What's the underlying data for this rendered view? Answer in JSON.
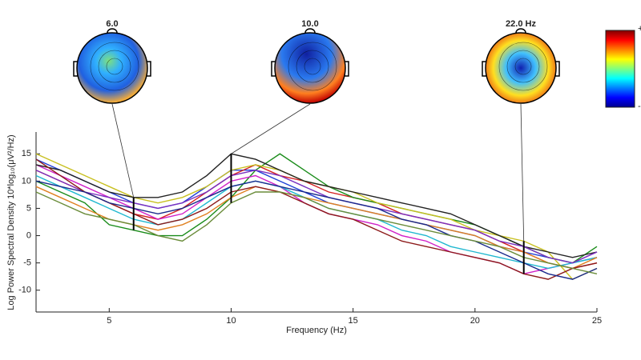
{
  "chart_data": {
    "type": "line",
    "xlabel": "Frequency (Hz)",
    "ylabel": "Log Power Spectral Density 10*log₁₀(μV²/Hz)",
    "x": [
      2,
      3,
      4,
      5,
      6,
      7,
      8,
      9,
      10,
      11,
      12,
      13,
      14,
      15,
      16,
      17,
      18,
      19,
      20,
      21,
      22,
      23,
      24,
      25
    ],
    "xlim": [
      2,
      25
    ],
    "xticks": [
      5,
      10,
      15,
      20,
      25
    ],
    "ylim": [
      -14,
      19
    ],
    "yticks": [
      -10,
      -5,
      0,
      5,
      10,
      15
    ],
    "markers": [
      {
        "freq": 6,
        "label": "6.0"
      },
      {
        "freq": 10,
        "label": "10.0"
      },
      {
        "freq": 22,
        "label": "22.0 Hz"
      }
    ],
    "colorbar": {
      "top": "+",
      "bottom": "-"
    },
    "series": [
      {
        "color": "#1f3fd6",
        "values": [
          14,
          12,
          10,
          8,
          6,
          5,
          6,
          9,
          12,
          12,
          10,
          8,
          6,
          5,
          4,
          3,
          2,
          1,
          0,
          -2,
          -3,
          -4,
          -5,
          -4
        ]
      },
      {
        "color": "#d42020",
        "values": [
          12,
          10,
          8,
          6,
          4,
          3,
          5,
          8,
          11,
          13,
          11,
          10,
          8,
          7,
          6,
          4,
          3,
          2,
          1,
          -1,
          -3,
          -5,
          -6,
          -5
        ]
      },
      {
        "color": "#1a8c1a",
        "values": [
          10,
          8,
          6,
          2,
          1,
          0,
          0,
          3,
          7,
          12,
          15,
          12,
          9,
          7,
          6,
          5,
          4,
          3,
          2,
          0,
          -2,
          -4,
          -5,
          -2
        ]
      },
      {
        "color": "#d020c8",
        "values": [
          13,
          11,
          9,
          7,
          5,
          3,
          4,
          7,
          10,
          11,
          9,
          6,
          4,
          3,
          2,
          0,
          -1,
          -3,
          -4,
          -5,
          -7,
          -6,
          -5,
          -3
        ]
      },
      {
        "color": "#c8c020",
        "values": [
          15,
          13,
          11,
          9,
          7,
          6,
          7,
          9,
          12,
          13,
          12,
          10,
          9,
          8,
          6,
          5,
          4,
          3,
          1,
          0,
          -1,
          -3,
          -8,
          -6
        ]
      },
      {
        "color": "#20b8d0",
        "values": [
          11,
          9,
          7,
          5,
          3,
          2,
          3,
          6,
          9,
          10,
          9,
          7,
          5,
          4,
          3,
          1,
          0,
          -2,
          -3,
          -4,
          -5,
          -6,
          -5,
          -4
        ]
      },
      {
        "color": "#222222",
        "values": [
          13,
          12,
          10,
          8,
          7,
          7,
          8,
          11,
          15,
          14,
          12,
          10,
          9,
          8,
          7,
          6,
          5,
          4,
          2,
          0,
          -2,
          -3,
          -4,
          -3
        ]
      },
      {
        "color": "#e08020",
        "values": [
          9,
          7,
          5,
          3,
          2,
          1,
          2,
          4,
          7,
          9,
          8,
          7,
          6,
          5,
          4,
          3,
          2,
          1,
          0,
          -2,
          -3,
          -5,
          -6,
          -4
        ]
      },
      {
        "color": "#7a30c0",
        "values": [
          12,
          10,
          8,
          7,
          6,
          5,
          6,
          8,
          11,
          12,
          11,
          9,
          7,
          6,
          5,
          4,
          3,
          2,
          1,
          -1,
          -2,
          -4,
          -5,
          -3
        ]
      },
      {
        "color": "#8c1a1a",
        "values": [
          14,
          11,
          8,
          6,
          4,
          2,
          3,
          5,
          8,
          9,
          8,
          6,
          4,
          3,
          1,
          -1,
          -2,
          -3,
          -4,
          -5,
          -7,
          -8,
          -6,
          -5
        ]
      },
      {
        "color": "#1a2a8c",
        "values": [
          10,
          9,
          8,
          6,
          5,
          4,
          5,
          7,
          9,
          10,
          9,
          8,
          7,
          6,
          5,
          3,
          2,
          0,
          -1,
          -3,
          -5,
          -7,
          -8,
          -6
        ]
      },
      {
        "color": "#6a8c3a",
        "values": [
          8,
          6,
          4,
          3,
          2,
          0,
          -1,
          2,
          6,
          8,
          8,
          7,
          5,
          4,
          3,
          2,
          1,
          0,
          -1,
          -2,
          -4,
          -5,
          -6,
          -7
        ]
      }
    ]
  }
}
